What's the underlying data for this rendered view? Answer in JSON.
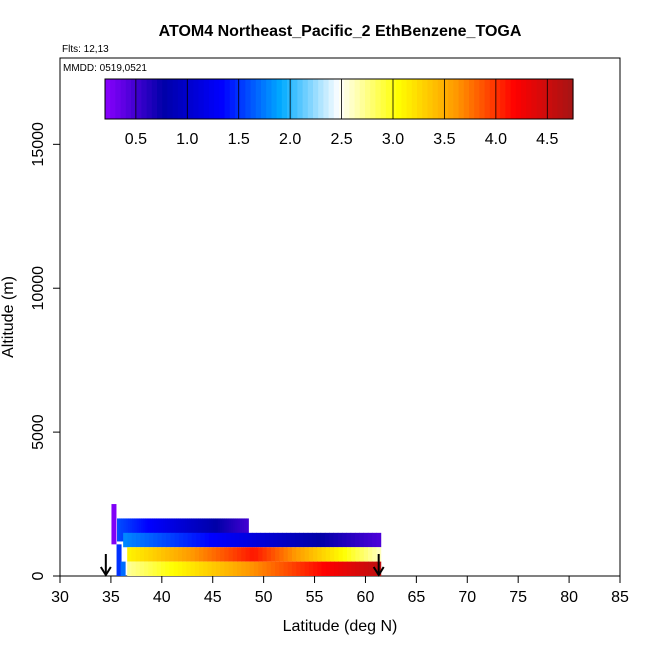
{
  "chart_data": {
    "type": "heatmap",
    "title": "ATOM4 Northeast_Pacific_2 EthBenzene_TOGA",
    "flights_label": "Flts: 12,13",
    "mmdd_label": "MMDD: 0519,0521",
    "xlabel": "Latitude (deg N)",
    "ylabel": "Altitude (m)",
    "xlim": [
      30,
      85
    ],
    "ylim": [
      0,
      18000
    ],
    "x_ticks": [
      "30",
      "35",
      "40",
      "45",
      "50",
      "55",
      "60",
      "65",
      "70",
      "75",
      "80",
      "85"
    ],
    "y_ticks": [
      "0",
      "5000",
      "10000",
      "15000"
    ],
    "colorbar": {
      "min": 0.2,
      "max": 4.75,
      "ticks": [
        "0.5",
        "1.0",
        "1.5",
        "2.0",
        "2.5",
        "3.0",
        "3.5",
        "4.0",
        "4.5"
      ],
      "colors": [
        "#8b00ff",
        "#0000a8",
        "#0000ff",
        "#00aaff",
        "#ffffff",
        "#ffff00",
        "#ff9900",
        "#ff0000",
        "#a51515"
      ]
    },
    "strips": [
      {
        "alt_low": 1200,
        "alt_high": 2000,
        "lat_start": 35.6,
        "lat_end": 48.5,
        "v_start": 1.6,
        "v_end": 0.5
      },
      {
        "alt_low": 1000,
        "alt_high": 1500,
        "lat_start": 36.2,
        "lat_end": 61.5,
        "v_start": 1.8,
        "v_end": 0.45
      },
      {
        "alt_low": 500,
        "alt_high": 1000,
        "lat_start": 36.6,
        "lat_end": 61.5,
        "v_start": 3.1,
        "v_end": 2.6,
        "v_mid": 4.1
      },
      {
        "alt_low": 0,
        "alt_high": 500,
        "lat_start": 36.6,
        "lat_end": 61.5,
        "v_start": 2.7,
        "v_end": 4.6
      }
    ],
    "profiles": [
      {
        "lat": 35.3,
        "alt_low": 1100,
        "alt_high": 2500,
        "value": 0.25
      },
      {
        "lat": 35.8,
        "alt_low": 0,
        "alt_high": 1100,
        "value": 1.5
      },
      {
        "lat": 36.2,
        "alt_low": 0,
        "alt_high": 500,
        "value": 1.7
      }
    ],
    "arrows": [
      {
        "lat": 34.5,
        "label": "down-arrow"
      },
      {
        "lat": 61.3,
        "label": "down-arrow"
      }
    ]
  }
}
